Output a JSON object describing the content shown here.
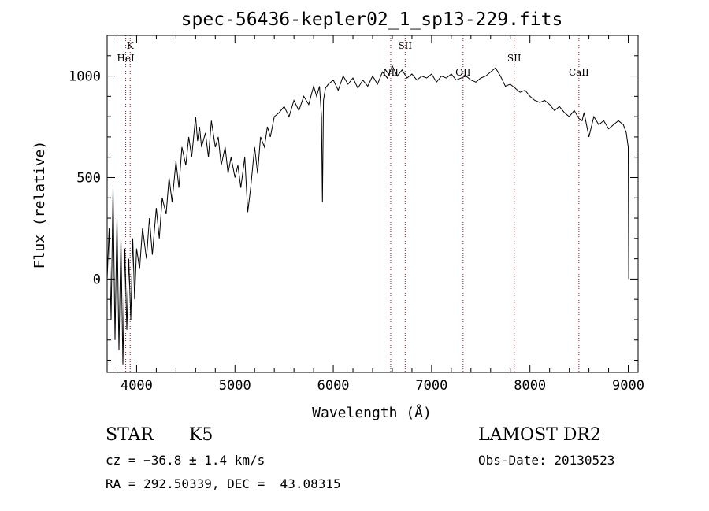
{
  "chart_data": {
    "type": "line",
    "title": "spec-56436-kepler02_1_sp13-229.fits",
    "xlabel": "Wavelength (Å)",
    "ylabel": "Flux (relative)",
    "xlim": [
      3700,
      9100
    ],
    "ylim": [
      -460,
      1200
    ],
    "xticks": [
      4000,
      5000,
      6000,
      7000,
      8000,
      9000
    ],
    "yticks": [
      0,
      500,
      1000
    ],
    "grid": false,
    "series": [
      {
        "x": [
          3700,
          3720,
          3740,
          3760,
          3780,
          3800,
          3820,
          3840,
          3860,
          3880,
          3900,
          3920,
          3940,
          3960,
          3980,
          4000,
          4030,
          4060,
          4100,
          4130,
          4160,
          4200,
          4230,
          4260,
          4300,
          4330,
          4360,
          4400,
          4430,
          4460,
          4500,
          4530,
          4560,
          4600,
          4620,
          4640,
          4660,
          4700,
          4730,
          4760,
          4800,
          4830,
          4860,
          4900,
          4930,
          4960,
          5000,
          5030,
          5060,
          5100,
          5130,
          5160,
          5180,
          5200,
          5230,
          5260,
          5300,
          5330,
          5360,
          5400,
          5450,
          5500,
          5550,
          5600,
          5650,
          5700,
          5750,
          5800,
          5830,
          5860,
          5880,
          5890,
          5900,
          5920,
          5950,
          6000,
          6050,
          6100,
          6150,
          6200,
          6250,
          6300,
          6350,
          6400,
          6450,
          6500,
          6550,
          6600,
          6650,
          6700,
          6750,
          6800,
          6850,
          6900,
          6950,
          7000,
          7050,
          7100,
          7150,
          7200,
          7250,
          7300,
          7350,
          7400,
          7450,
          7500,
          7550,
          7600,
          7650,
          7700,
          7750,
          7800,
          7850,
          7900,
          7950,
          8000,
          8050,
          8100,
          8150,
          8200,
          8250,
          8300,
          8350,
          8400,
          8450,
          8500,
          8530,
          8550,
          8600,
          8650,
          8700,
          8750,
          8800,
          8850,
          8900,
          8950,
          8980,
          9000,
          9005
        ],
        "y": [
          0,
          250,
          -200,
          450,
          -300,
          300,
          -350,
          200,
          -420,
          150,
          -250,
          100,
          -200,
          200,
          -100,
          150,
          50,
          250,
          100,
          300,
          120,
          350,
          200,
          400,
          320,
          500,
          380,
          580,
          450,
          650,
          560,
          700,
          600,
          800,
          680,
          750,
          650,
          720,
          600,
          780,
          650,
          700,
          560,
          650,
          520,
          600,
          500,
          560,
          450,
          600,
          330,
          450,
          550,
          650,
          520,
          700,
          650,
          750,
          700,
          800,
          820,
          850,
          800,
          880,
          830,
          900,
          860,
          950,
          900,
          950,
          800,
          380,
          880,
          940,
          960,
          980,
          930,
          1000,
          960,
          990,
          940,
          980,
          950,
          1000,
          960,
          1020,
          990,
          1050,
          1000,
          1030,
          990,
          1010,
          980,
          1000,
          990,
          1010,
          970,
          1000,
          990,
          1010,
          980,
          990,
          1000,
          980,
          970,
          990,
          1000,
          1020,
          1040,
          1000,
          950,
          960,
          940,
          920,
          930,
          900,
          880,
          870,
          880,
          860,
          830,
          850,
          820,
          800,
          830,
          790,
          780,
          820,
          700,
          800,
          760,
          780,
          740,
          760,
          780,
          760,
          720,
          650,
          0
        ]
      }
    ],
    "line_markers": [
      {
        "label": "K",
        "x": 3934,
        "row": 0
      },
      {
        "label": "HeI",
        "x": 3889,
        "row": 1
      },
      {
        "label": "SII",
        "x": 6731,
        "row": 0
      },
      {
        "label": "NII",
        "x": 6584,
        "row": 2
      },
      {
        "label": "OII",
        "x": 7320,
        "row": 2
      },
      {
        "label": "SII",
        "x": 7840,
        "row": 1
      },
      {
        "label": "CaII",
        "x": 8498,
        "row": 2
      }
    ]
  },
  "info": {
    "object_class": "STAR",
    "subclass": "K5",
    "survey": "LAMOST DR2",
    "cz": "cz = −36.8 ± 1.4 km/s",
    "obs_date": "Obs-Date: 20130523",
    "coords": "RA = 292.50339, DEC =  43.08315"
  },
  "colors": {
    "spectrum": "#000000",
    "marker_line": "#8b1a1a",
    "axes": "#000000"
  }
}
